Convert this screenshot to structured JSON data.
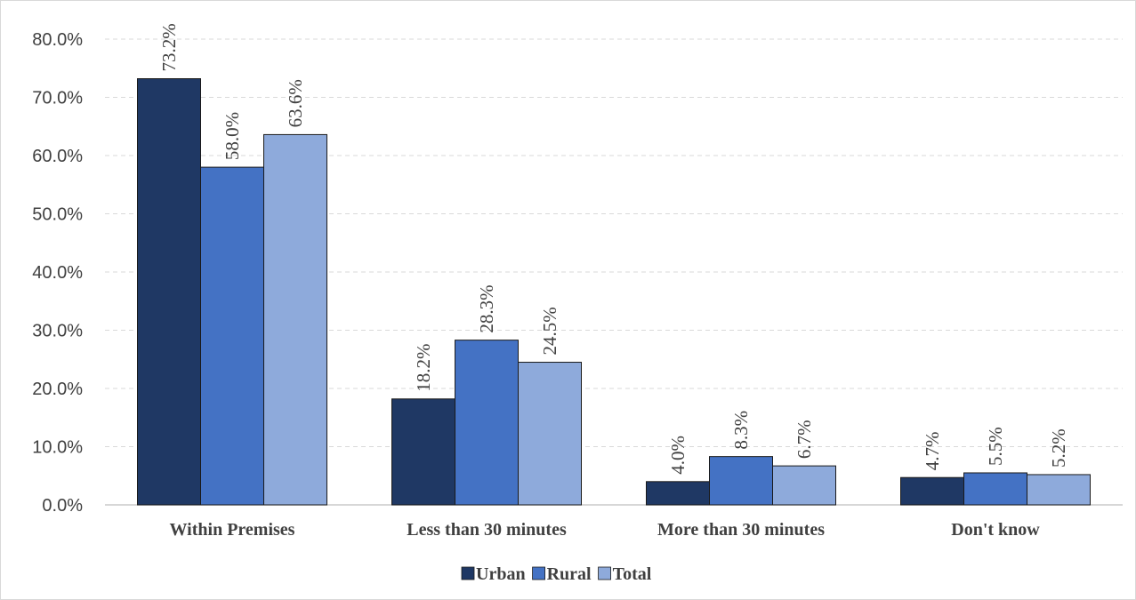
{
  "chart_data": {
    "type": "bar",
    "categories": [
      "Within Premises",
      "Less than 30 minutes",
      "More than 30 minutes",
      "Don't know"
    ],
    "series": [
      {
        "name": "Urban",
        "values": [
          73.2,
          18.2,
          4.0,
          4.7
        ],
        "labels": [
          "73.2%",
          "18.2%",
          "4.0%",
          "4.7%"
        ],
        "color": "#1f3864"
      },
      {
        "name": "Rural",
        "values": [
          58.0,
          28.3,
          8.3,
          5.5
        ],
        "labels": [
          "58.0%",
          "28.3%",
          "8.3%",
          "5.5%"
        ],
        "color": "#4472c4"
      },
      {
        "name": "Total",
        "values": [
          63.6,
          24.5,
          6.7,
          5.2
        ],
        "labels": [
          "63.6%",
          "24.5%",
          "6.7%",
          "5.2%"
        ],
        "color": "#8eaadb"
      }
    ],
    "y_ticks": [
      "0.0%",
      "10.0%",
      "20.0%",
      "30.0%",
      "40.0%",
      "50.0%",
      "60.0%",
      "70.0%",
      "80.0%"
    ],
    "ylim": [
      0,
      80
    ],
    "grid": true,
    "legend_position": "bottom",
    "title": "",
    "xlabel": "",
    "ylabel": ""
  }
}
